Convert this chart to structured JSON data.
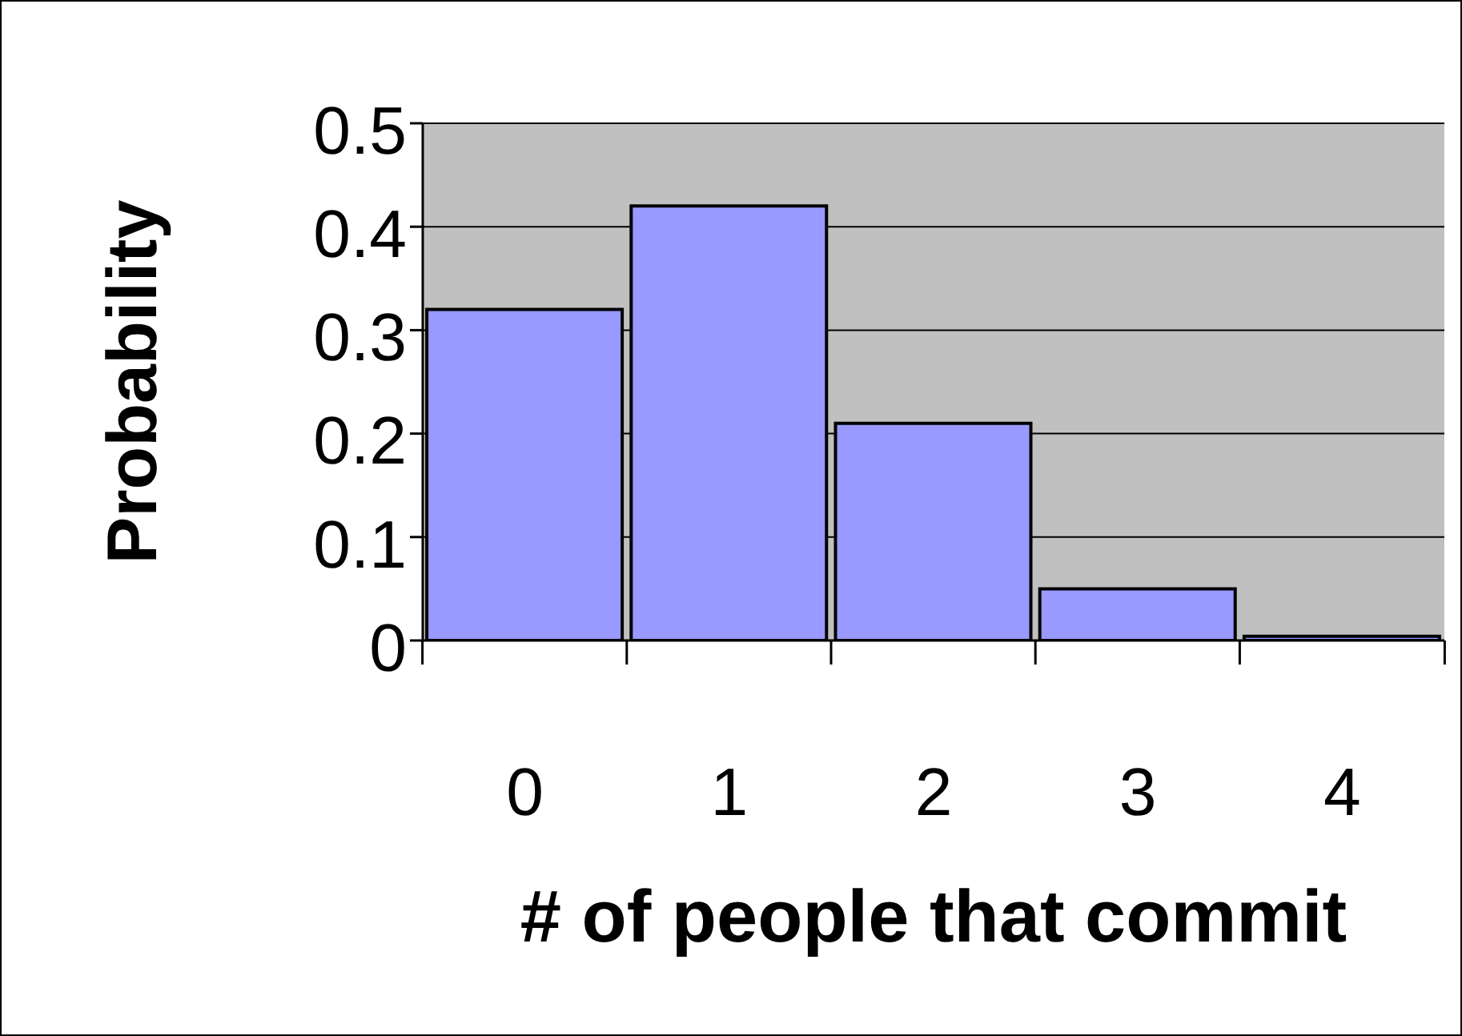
{
  "chart_data": {
    "type": "bar",
    "xlabel": "# of people that commit",
    "ylabel": "Probability",
    "categories": [
      "0",
      "1",
      "2",
      "3",
      "4"
    ],
    "values": [
      0.32,
      0.42,
      0.21,
      0.05,
      0.004
    ],
    "color": "#9999ff",
    "ylim": [
      0,
      0.5
    ],
    "yticks": [
      0,
      0.1,
      0.2,
      0.3,
      0.4,
      0.5
    ],
    "grid": "y",
    "legend": false
  }
}
